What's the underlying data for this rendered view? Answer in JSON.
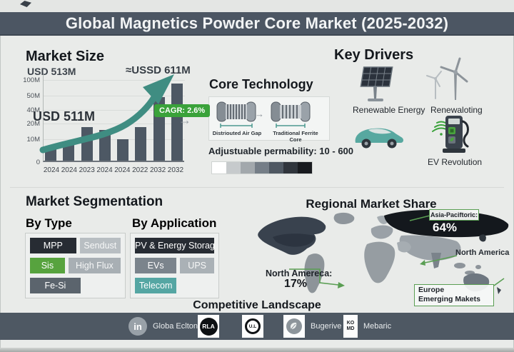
{
  "header": {
    "title": "Global Magnetics Powder Core Market (2025-2032)"
  },
  "icons": {
    "arrow_right": "→"
  },
  "market_size": {
    "heading": "Market Size",
    "label_top_left": "USD 513M",
    "label_top_right": "≈USSD 611M",
    "label_mid": "USD 511M",
    "cagr_badge": "CAGR: 2.6%"
  },
  "chart_data": {
    "type": "bar",
    "title": "Market Size",
    "categories": [
      "2024",
      "2024",
      "2023",
      "2024",
      "2024",
      "2022",
      "2032",
      "2032"
    ],
    "values_usd_m_est": [
      8,
      10,
      18,
      16,
      10,
      18,
      47,
      85
    ],
    "bar_heights_pct": [
      16,
      21,
      38,
      35,
      24,
      38,
      72,
      88
    ],
    "y_ticks": [
      "100M",
      "50M",
      "40M",
      "20M",
      "10M",
      "0"
    ],
    "ylim": [
      0,
      100
    ],
    "bar_color": "#4d5864",
    "trend_annotation": "upward teal growth arrow",
    "annotations": [
      "USD 513M",
      "≈USSD 611M",
      "USD 511M",
      "CAGR: 2.6%"
    ],
    "legend": "none",
    "grid": "faint horizontal"
  },
  "core_technology": {
    "heading": "Core Technology",
    "core_labels": [
      "Distriouted Air Gap",
      "Traditional Ferrite Core"
    ],
    "permeability": "Adjustuable permability: 10 - 600",
    "scale_colors": [
      "#ffffff",
      "#c6cacc",
      "#a2a8ac",
      "#757e87",
      "#4f5862",
      "#30353c",
      "#191b1f"
    ]
  },
  "key_drivers": {
    "heading": "Key Drivers",
    "items": [
      {
        "icon": "solar-panel-icon",
        "label": "Renewable Energy"
      },
      {
        "icon": "wind-turbine-icon",
        "label": "Renewaloting"
      },
      {
        "icon": "ev-car-icon",
        "label": ""
      },
      {
        "icon": "ev-charger-icon",
        "label": "EV Revolution"
      }
    ]
  },
  "segmentation": {
    "heading": "Market Segmentation",
    "by_type": {
      "heading": "By Type",
      "rows": [
        [
          {
            "label": "MPP",
            "bg": "#272c33",
            "fg": "#ffffff",
            "flex": 53
          },
          {
            "label": "Sendust",
            "bg": "#b8bec2",
            "fg": "#f6f7f7",
            "flex": 47
          }
        ],
        [
          {
            "label": "Sis",
            "bg": "#57a33e",
            "fg": "#ffffff",
            "flex": 40
          },
          {
            "label": "High Flux",
            "bg": "#a8afb4",
            "fg": "#f6f7f7",
            "flex": 60
          }
        ],
        [
          {
            "label": "Fe-Si",
            "bg": "#5b646d",
            "fg": "#ffffff",
            "flex": 58
          },
          {
            "label": "",
            "bg": "transparent",
            "fg": "transparent",
            "flex": 42
          }
        ]
      ]
    },
    "by_application": {
      "heading": "By Application",
      "rows": [
        [
          {
            "label": "PV & Energy Storage",
            "bg": "#272c33",
            "fg": "#ffffff",
            "flex": 100
          }
        ],
        [
          {
            "label": "EVs",
            "bg": "#7b848c",
            "fg": "#ffffff",
            "flex": 55
          },
          {
            "label": "UPS",
            "bg": "#aab1b6",
            "fg": "#f6f7f7",
            "flex": 45
          }
        ],
        [
          {
            "label": "Telecom",
            "bg": "#55a6a3",
            "fg": "#ffffff",
            "flex": 55
          },
          {
            "label": "",
            "bg": "transparent",
            "fg": "transparent",
            "flex": 45
          }
        ]
      ]
    }
  },
  "regional": {
    "heading": "Regional Market Share",
    "asia_pacific_label": "Asia-Paciftoric:",
    "asia_pacific_value": "64%",
    "north_america_right_label": "North America",
    "north_america_left_label": "North Amereca:",
    "north_america_left_value": "17%",
    "europe_line1": "Europe",
    "europe_line2": "Emerging Makets",
    "shares": [
      {
        "region": "Asia-Pacific",
        "value_pct": 64
      },
      {
        "region": "North America",
        "value_pct": 17
      }
    ]
  },
  "competitive": {
    "heading": "Competitive Landscape",
    "logos": [
      {
        "icon": "linkedin-icon",
        "glyph": "in",
        "label": "Globa Eclton"
      },
      {
        "icon": "rla-logo",
        "glyph": "RLA",
        "label": ""
      },
      {
        "icon": "ul-logo",
        "glyph": "U.L",
        "label": ""
      },
      {
        "icon": "leaf-logo",
        "glyph": "",
        "label": "Bugerive"
      },
      {
        "icon": "komo-logo",
        "glyph": "KO\nMD",
        "label": "Mebaric"
      }
    ]
  },
  "colors": {
    "header_bg": "#4c5663",
    "background": "#e9ebe9",
    "bar_fill": "#4d5864",
    "accent_teal": "#3f8d82",
    "accent_green": "#3aa23a",
    "callout_green": "#5a9e53",
    "map_dark": "#14181d",
    "map_base": "#9aa1a7"
  }
}
